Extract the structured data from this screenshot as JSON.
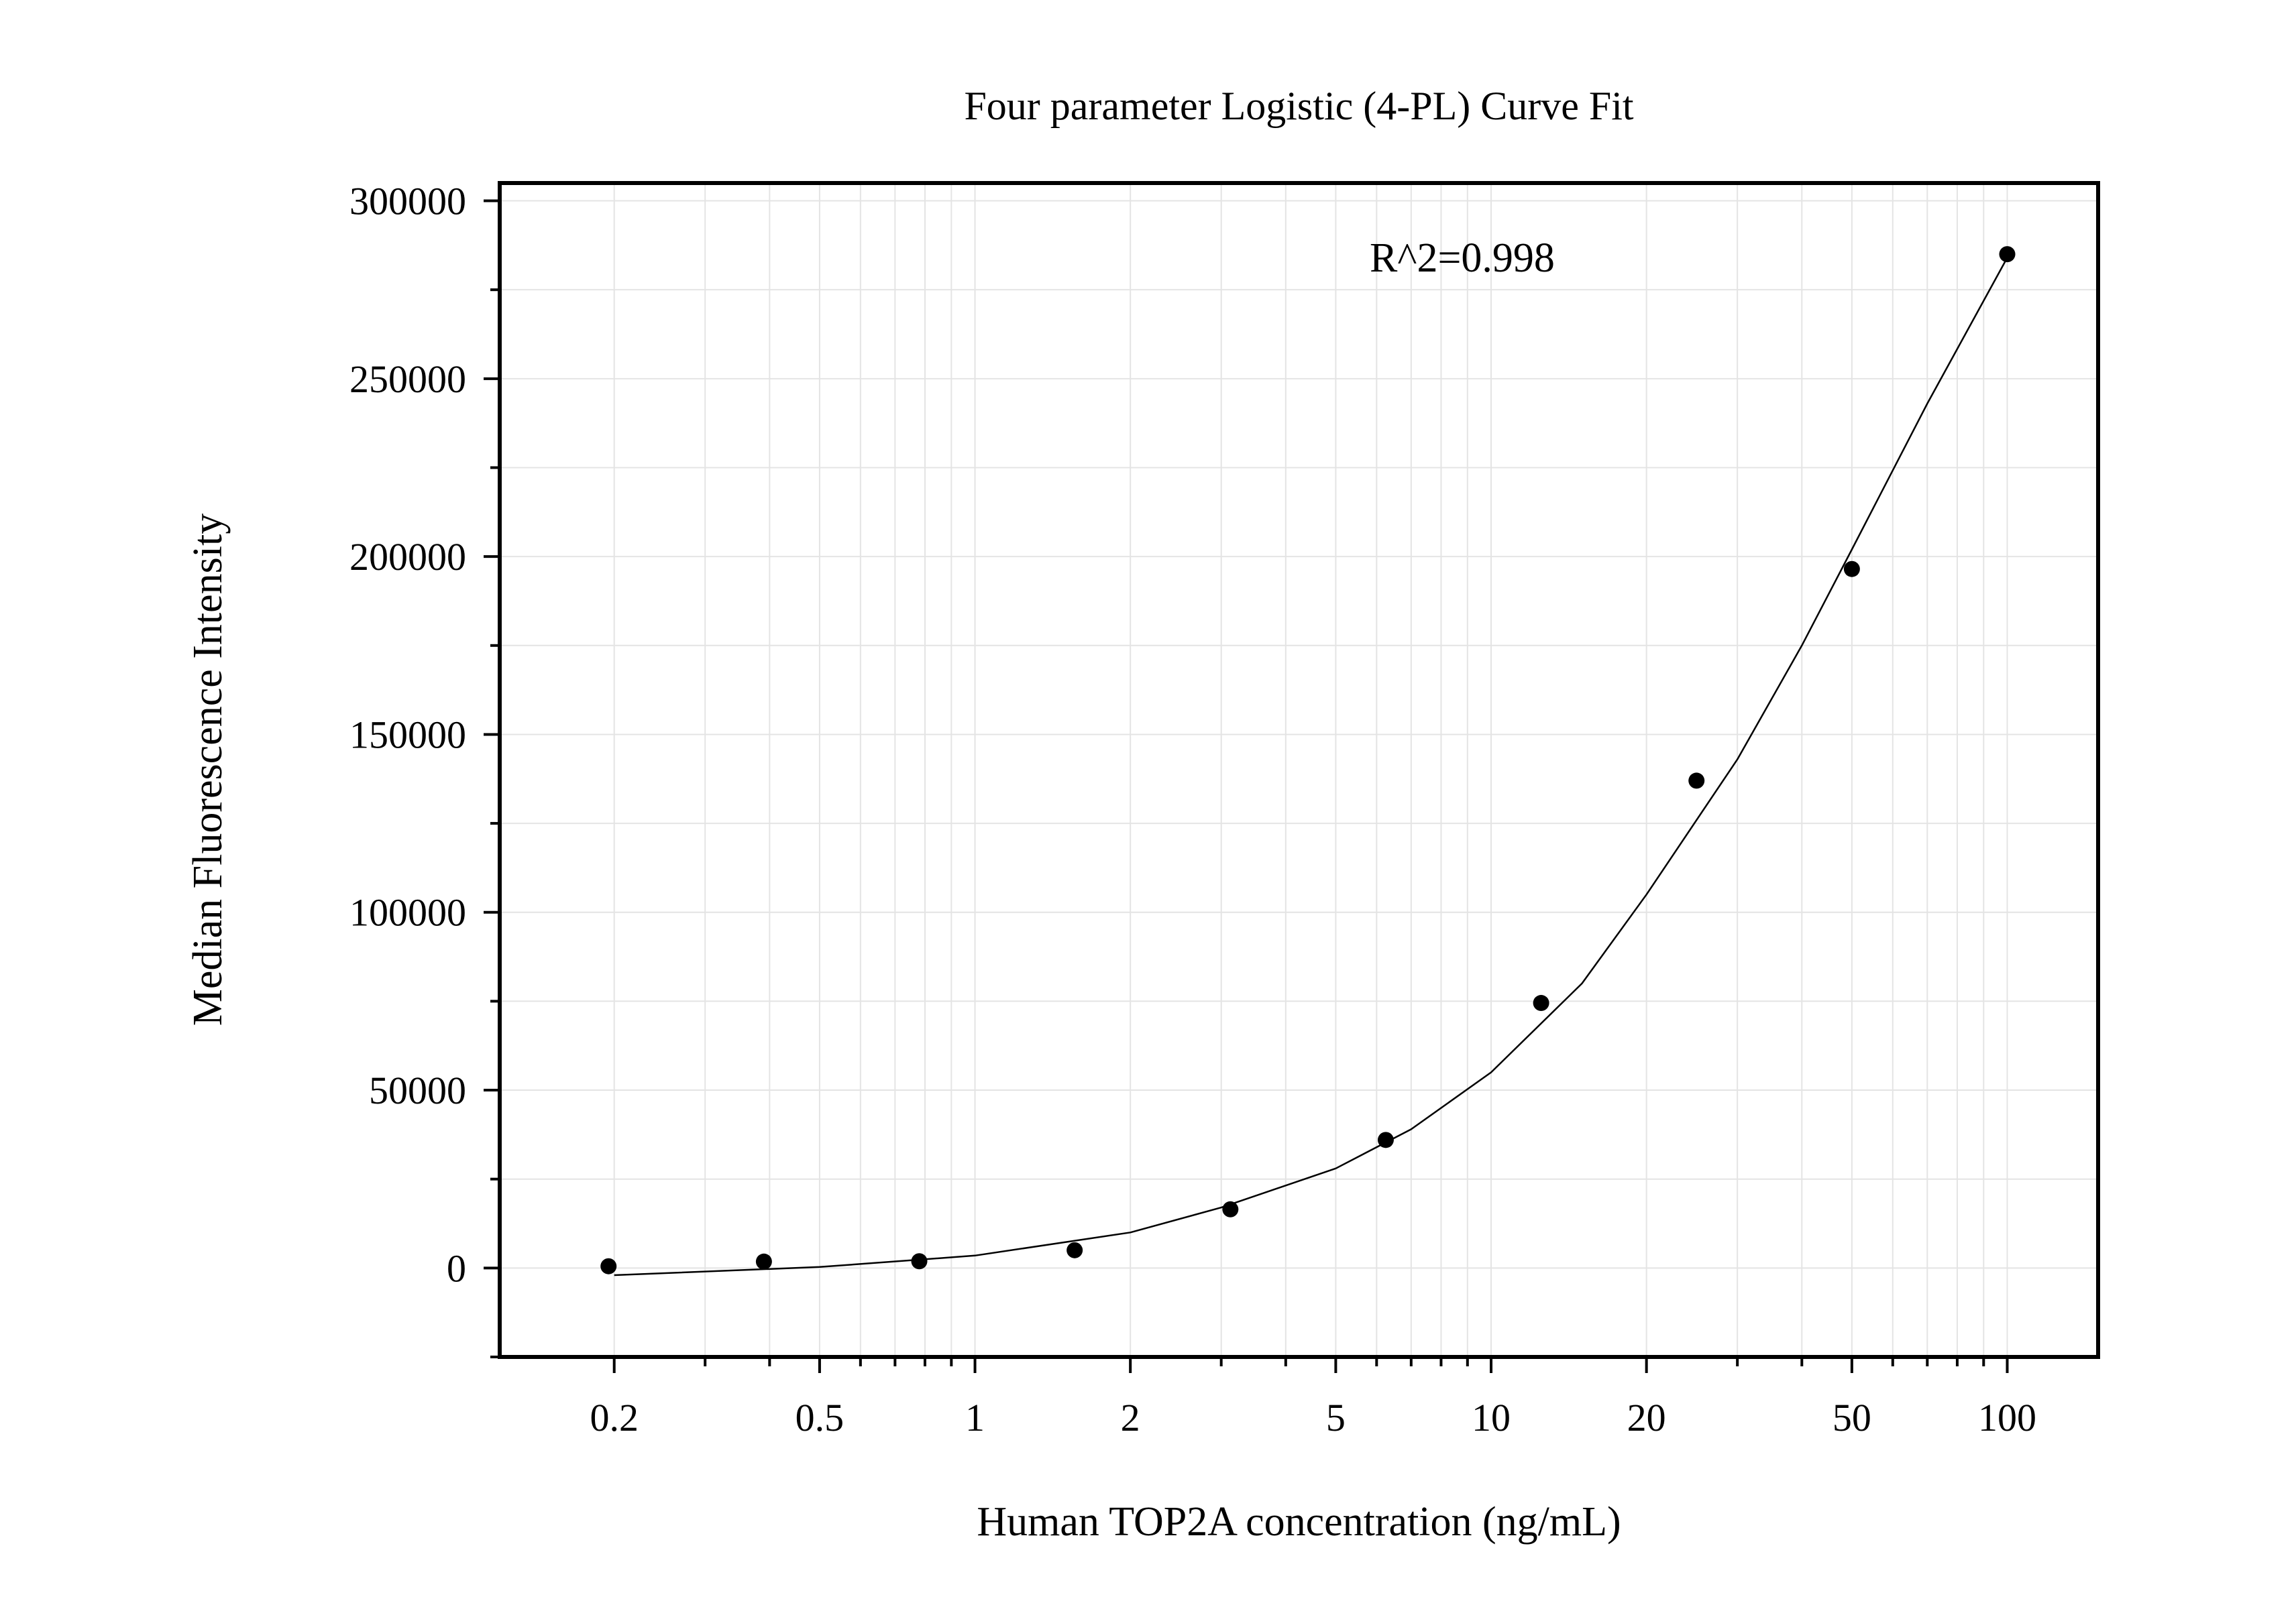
{
  "chart_data": {
    "type": "scatter",
    "title": "Four parameter Logistic (4-PL) Curve Fit",
    "xlabel": "Human TOP2A concentration (ng/mL)",
    "ylabel": "Median Fluorescence Intensity",
    "x_scale": "log",
    "xlim": [
      0.12,
      150
    ],
    "ylim": [
      -25000,
      305000
    ],
    "x_ticks": [
      {
        "value": 0.2,
        "label": "0.2"
      },
      {
        "value": 0.5,
        "label": "0.5"
      },
      {
        "value": 1,
        "label": "1"
      },
      {
        "value": 2,
        "label": "2"
      },
      {
        "value": 5,
        "label": "5"
      },
      {
        "value": 10,
        "label": "10"
      },
      {
        "value": 20,
        "label": "20"
      },
      {
        "value": 50,
        "label": "50"
      },
      {
        "value": 100,
        "label": "100"
      }
    ],
    "y_ticks": [
      {
        "value": 0,
        "label": "0"
      },
      {
        "value": 50000,
        "label": "50000"
      },
      {
        "value": 100000,
        "label": "100000"
      },
      {
        "value": 150000,
        "label": "150000"
      },
      {
        "value": 200000,
        "label": "200000"
      },
      {
        "value": 250000,
        "label": "250000"
      },
      {
        "value": 300000,
        "label": "300000"
      }
    ],
    "grid": true,
    "annotation": "R^2=0.998",
    "series": [
      {
        "kind": "points",
        "color": "#000000",
        "points": [
          {
            "x": 0.195,
            "y": 500
          },
          {
            "x": 0.39,
            "y": 1800
          },
          {
            "x": 0.78,
            "y": 1900
          },
          {
            "x": 1.56,
            "y": 5000
          },
          {
            "x": 3.125,
            "y": 16500
          },
          {
            "x": 6.25,
            "y": 36000
          },
          {
            "x": 12.5,
            "y": 74500
          },
          {
            "x": 25,
            "y": 137000
          },
          {
            "x": 50,
            "y": 196500
          },
          {
            "x": 100,
            "y": 285000
          }
        ]
      },
      {
        "kind": "fit-curve",
        "color": "#000000",
        "points": [
          {
            "x": 0.2,
            "y": -2000
          },
          {
            "x": 0.5,
            "y": 300
          },
          {
            "x": 1,
            "y": 3500
          },
          {
            "x": 2,
            "y": 10000
          },
          {
            "x": 3,
            "y": 17000
          },
          {
            "x": 5,
            "y": 28000
          },
          {
            "x": 7,
            "y": 39000
          },
          {
            "x": 10,
            "y": 55000
          },
          {
            "x": 15,
            "y": 80000
          },
          {
            "x": 20,
            "y": 105000
          },
          {
            "x": 30,
            "y": 143000
          },
          {
            "x": 40,
            "y": 175000
          },
          {
            "x": 50,
            "y": 202000
          },
          {
            "x": 70,
            "y": 243000
          },
          {
            "x": 100,
            "y": 284000
          }
        ]
      }
    ]
  }
}
